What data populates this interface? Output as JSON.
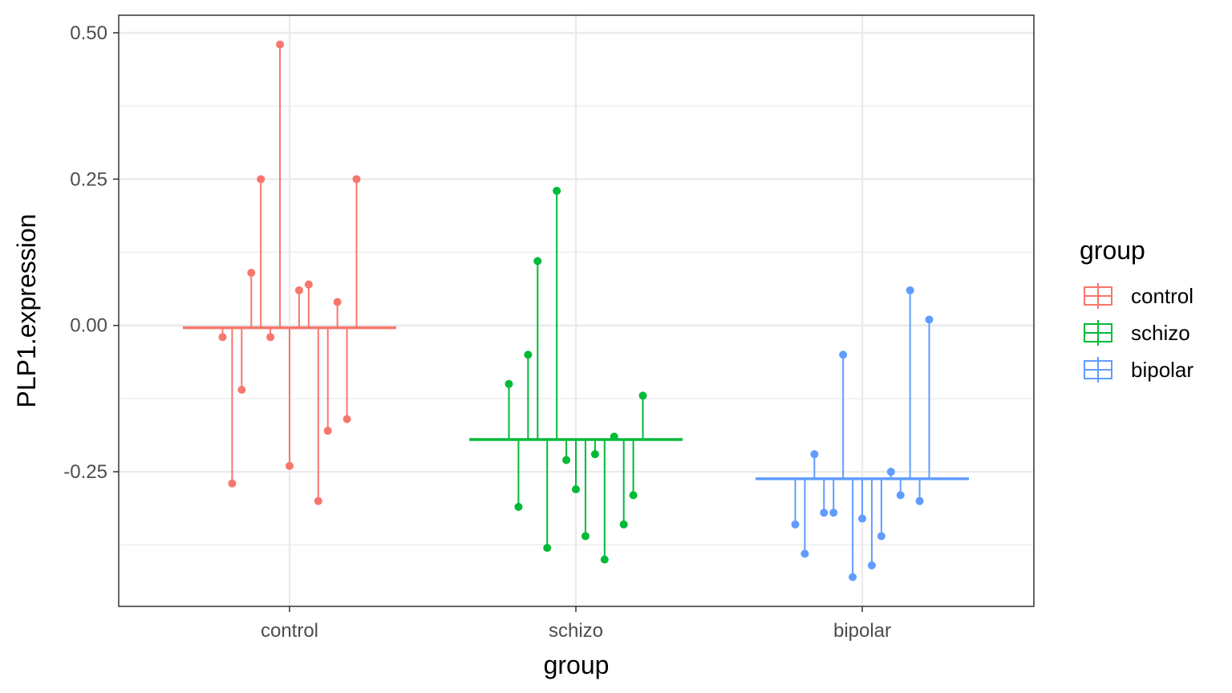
{
  "chart_data": {
    "type": "scatter",
    "xlabel": "group",
    "ylabel": "PLP1.expression",
    "categories": [
      "control",
      "schizo",
      "bipolar"
    ],
    "ylim": [
      -0.48,
      0.53
    ],
    "yticks": [
      -0.25,
      0.0,
      0.25,
      0.5
    ],
    "ytick_labels": [
      "-0.25",
      "0.00",
      "0.25",
      "0.50"
    ],
    "grid": true,
    "legend": {
      "title": "group",
      "placement": "right",
      "entries": [
        "control",
        "schizo",
        "bipolar"
      ]
    },
    "series": [
      {
        "name": "control",
        "color": "#F8766D",
        "mean": -0.004,
        "values": [
          -0.02,
          -0.27,
          -0.11,
          0.09,
          0.25,
          -0.02,
          0.48,
          -0.24,
          0.06,
          0.07,
          -0.3,
          -0.18,
          0.04,
          -0.16,
          0.25
        ]
      },
      {
        "name": "schizo",
        "color": "#00BA38",
        "mean": -0.195,
        "values": [
          -0.1,
          -0.31,
          -0.05,
          0.11,
          -0.38,
          0.23,
          -0.23,
          -0.28,
          -0.36,
          -0.22,
          -0.4,
          -0.19,
          -0.34,
          -0.29,
          -0.12
        ]
      },
      {
        "name": "bipolar",
        "color": "#619CFF",
        "mean": -0.262,
        "values": [
          -0.34,
          -0.39,
          -0.22,
          -0.32,
          -0.32,
          -0.05,
          -0.43,
          -0.33,
          -0.41,
          -0.36,
          -0.25,
          -0.29,
          0.06,
          -0.3,
          0.01
        ]
      }
    ]
  }
}
